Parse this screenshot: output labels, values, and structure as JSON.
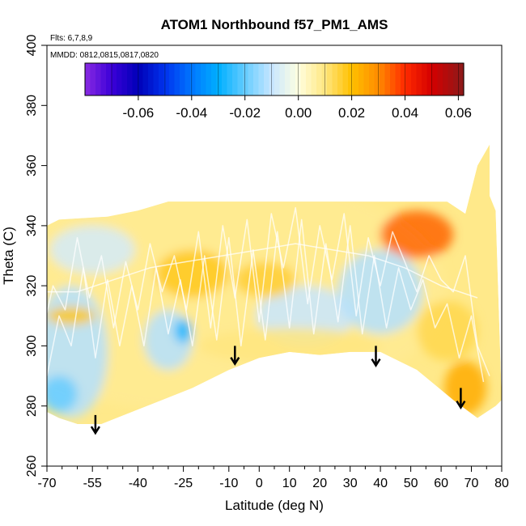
{
  "chart_data": {
    "type": "heatmap",
    "title": "ATOM1 Northbound f57_PM1_AMS",
    "annotations": {
      "flights": "Flts: 6,7,8,9",
      "dates": "MMDD: 0812,0815,0817,0820"
    },
    "xlabel": "Latitude (deg N)",
    "ylabel": "Theta (C)",
    "xlim": [
      -70,
      80
    ],
    "ylim": [
      260,
      400
    ],
    "x_ticks": [
      {
        "v": -70,
        "label": "-70"
      },
      {
        "v": -55,
        "label": "-55"
      },
      {
        "v": -40,
        "label": "-40"
      },
      {
        "v": -25,
        "label": "-25"
      },
      {
        "v": -10,
        "label": "-10"
      },
      {
        "v": 0,
        "label": "0"
      },
      {
        "v": 10,
        "label": "10"
      },
      {
        "v": 20,
        "label": "20"
      },
      {
        "v": 30,
        "label": "30"
      },
      {
        "v": 40,
        "label": "40"
      },
      {
        "v": 50,
        "label": "50"
      },
      {
        "v": 60,
        "label": "60"
      },
      {
        "v": 70,
        "label": "70"
      },
      {
        "v": 80,
        "label": "80"
      }
    ],
    "x_minor_ticks": [
      -65,
      -60,
      -50,
      -45,
      -35,
      -30,
      -20,
      -15,
      -5,
      5,
      15,
      25,
      35,
      45,
      55,
      65,
      75
    ],
    "y_ticks": [
      {
        "v": 260,
        "label": "260"
      },
      {
        "v": 280,
        "label": "280"
      },
      {
        "v": 300,
        "label": "300"
      },
      {
        "v": 320,
        "label": "320"
      },
      {
        "v": 340,
        "label": "340"
      },
      {
        "v": 360,
        "label": "360"
      },
      {
        "v": 380,
        "label": "380"
      },
      {
        "v": 400,
        "label": "400"
      }
    ],
    "colorbar": {
      "range": [
        -0.08,
        0.062
      ],
      "ticks": [
        {
          "v": -0.06,
          "label": "-0.06"
        },
        {
          "v": -0.04,
          "label": "-0.04"
        },
        {
          "v": -0.02,
          "label": "-0.02"
        },
        {
          "v": 0.0,
          "label": "0.00"
        },
        {
          "v": 0.02,
          "label": "0.02"
        },
        {
          "v": 0.04,
          "label": "0.04"
        },
        {
          "v": 0.06,
          "label": "0.06"
        }
      ],
      "stops": [
        {
          "v": -0.08,
          "color": "#8a2be2"
        },
        {
          "v": -0.07,
          "color": "#3b00d8"
        },
        {
          "v": -0.06,
          "color": "#0000b8"
        },
        {
          "v": -0.05,
          "color": "#0033ee"
        },
        {
          "v": -0.04,
          "color": "#0077ff"
        },
        {
          "v": -0.03,
          "color": "#00b0ff"
        },
        {
          "v": -0.02,
          "color": "#66ccff"
        },
        {
          "v": -0.01,
          "color": "#c8e6ff"
        },
        {
          "v": 0.0,
          "color": "#ffffe0"
        },
        {
          "v": 0.01,
          "color": "#ffe680"
        },
        {
          "v": 0.02,
          "color": "#ffc000"
        },
        {
          "v": 0.03,
          "color": "#ff8c00"
        },
        {
          "v": 0.04,
          "color": "#ff2a00"
        },
        {
          "v": 0.05,
          "color": "#d40000"
        },
        {
          "v": 0.062,
          "color": "#8b1a1a"
        }
      ]
    },
    "data_hull": {
      "top": [
        [
          -74,
          338
        ],
        [
          -66,
          342
        ],
        [
          -50,
          343
        ],
        [
          -40,
          345
        ],
        [
          -30,
          348
        ],
        [
          -10,
          348
        ],
        [
          10,
          348
        ],
        [
          30,
          348
        ],
        [
          50,
          348
        ],
        [
          62,
          348
        ],
        [
          68,
          344
        ],
        [
          72,
          360
        ],
        [
          76,
          367
        ],
        [
          76,
          350
        ],
        [
          78,
          345
        ]
      ],
      "bottom": [
        [
          80,
          282
        ],
        [
          78,
          280
        ],
        [
          72,
          276
        ],
        [
          64,
          282
        ],
        [
          52,
          292
        ],
        [
          40,
          298
        ],
        [
          30,
          298
        ],
        [
          20,
          297
        ],
        [
          10,
          298
        ],
        [
          0,
          296
        ],
        [
          -10,
          292
        ],
        [
          -22,
          286
        ],
        [
          -32,
          282
        ],
        [
          -42,
          278
        ],
        [
          -52,
          274
        ],
        [
          -60,
          274
        ],
        [
          -66,
          276
        ],
        [
          -70,
          278
        ],
        [
          -74,
          280
        ]
      ]
    },
    "regions": [
      {
        "name": "broad-background",
        "lat": -18,
        "theta": 318,
        "rlat": 80,
        "rtheta": 40,
        "value": 0.008
      },
      {
        "name": "southern-blue-band",
        "lat": -62,
        "theta": 298,
        "rlat": 12,
        "rtheta": 22,
        "value": -0.012
      },
      {
        "name": "southern-upper-blue",
        "lat": -55,
        "theta": 332,
        "rlat": 14,
        "rtheta": 8,
        "value": -0.008
      },
      {
        "name": "southern-low-blue",
        "lat": -66,
        "theta": 284,
        "rlat": 6,
        "rtheta": 6,
        "value": -0.02
      },
      {
        "name": "midsouth-blue",
        "lat": -30,
        "theta": 302,
        "rlat": 8,
        "rtheta": 10,
        "value": -0.012
      },
      {
        "name": "blue-spot-25s",
        "lat": -25,
        "theta": 305,
        "rlat": 3,
        "rtheta": 4,
        "value": -0.028
      },
      {
        "name": "tropical-orange",
        "lat": -22,
        "theta": 324,
        "rlat": 12,
        "rtheta": 8,
        "value": 0.018
      },
      {
        "name": "equatorial-blue",
        "lat": 15,
        "theta": 310,
        "rlat": 16,
        "rtheta": 10,
        "value": -0.01
      },
      {
        "name": "equatorial-orange",
        "lat": 2,
        "theta": 322,
        "rlat": 10,
        "rtheta": 6,
        "value": 0.016
      },
      {
        "name": "north-upper-red",
        "lat": 52,
        "theta": 337,
        "rlat": 12,
        "rtheta": 8,
        "value": 0.034
      },
      {
        "name": "north-blue",
        "lat": 40,
        "theta": 318,
        "rlat": 14,
        "rtheta": 14,
        "value": -0.012
      },
      {
        "name": "north-lower-orange",
        "lat": 68,
        "theta": 286,
        "rlat": 7,
        "rtheta": 9,
        "value": 0.024
      },
      {
        "name": "north-mid-orange",
        "lat": 62,
        "theta": 305,
        "rlat": 10,
        "rtheta": 10,
        "value": 0.014
      },
      {
        "name": "lower-yellow",
        "lat": 10,
        "theta": 300,
        "rlat": 30,
        "rtheta": 6,
        "value": 0.01
      },
      {
        "name": "southern-orange-strip",
        "lat": -62,
        "theta": 310,
        "rlat": 8,
        "rtheta": 3,
        "value": 0.018
      }
    ],
    "arrows": [
      {
        "lat": -54,
        "theta_start": 277,
        "theta_end": 271
      },
      {
        "lat": -8,
        "theta_start": 300,
        "theta_end": 294
      },
      {
        "lat": 38.5,
        "theta_start": 300,
        "theta_end": 293.5
      },
      {
        "lat": 66.5,
        "theta_start": 286,
        "theta_end": 279.5
      }
    ],
    "flight_tracks": [
      [
        [
          -72,
          302
        ],
        [
          -68,
          320
        ],
        [
          -64,
          312
        ],
        [
          -60,
          336
        ],
        [
          -56,
          316
        ],
        [
          -52,
          330
        ],
        [
          -48,
          306
        ],
        [
          -44,
          328
        ],
        [
          -40,
          312
        ],
        [
          -36,
          334
        ],
        [
          -32,
          318
        ],
        [
          -28,
          330
        ],
        [
          -24,
          312
        ],
        [
          -20,
          338
        ],
        [
          -16,
          306
        ],
        [
          -12,
          340
        ],
        [
          -8,
          316
        ],
        [
          -4,
          342
        ],
        [
          0,
          308
        ],
        [
          4,
          344
        ],
        [
          8,
          326
        ],
        [
          12,
          346
        ],
        [
          16,
          314
        ],
        [
          20,
          340
        ],
        [
          24,
          322
        ],
        [
          28,
          344
        ],
        [
          32,
          310
        ],
        [
          36,
          336
        ],
        [
          40,
          320
        ],
        [
          44,
          338
        ],
        [
          48,
          328
        ],
        [
          52,
          318
        ],
        [
          56,
          330
        ],
        [
          60,
          322
        ],
        [
          64,
          318
        ],
        [
          68,
          330
        ],
        [
          72,
          300
        ],
        [
          76,
          290
        ]
      ],
      [
        [
          -70,
          290
        ],
        [
          -66,
          310
        ],
        [
          -62,
          300
        ],
        [
          -58,
          326
        ],
        [
          -54,
          296
        ],
        [
          -50,
          322
        ],
        [
          -46,
          300
        ],
        [
          -42,
          320
        ],
        [
          -38,
          300
        ],
        [
          -34,
          326
        ],
        [
          -30,
          304
        ],
        [
          -26,
          322
        ],
        [
          -22,
          300
        ],
        [
          -18,
          330
        ],
        [
          -14,
          302
        ],
        [
          -10,
          336
        ],
        [
          -6,
          300
        ],
        [
          -2,
          332
        ],
        [
          2,
          302
        ],
        [
          6,
          338
        ],
        [
          10,
          306
        ],
        [
          14,
          342
        ],
        [
          18,
          304
        ],
        [
          22,
          334
        ],
        [
          26,
          308
        ],
        [
          30,
          340
        ],
        [
          34,
          304
        ],
        [
          38,
          330
        ],
        [
          42,
          306
        ],
        [
          46,
          326
        ],
        [
          50,
          312
        ],
        [
          54,
          322
        ],
        [
          58,
          306
        ],
        [
          62,
          314
        ],
        [
          66,
          296
        ],
        [
          70,
          310
        ],
        [
          74,
          288
        ]
      ],
      [
        [
          -72,
          318
        ],
        [
          -60,
          318
        ],
        [
          -48,
          322
        ],
        [
          -36,
          326
        ],
        [
          -24,
          328
        ],
        [
          -12,
          330
        ],
        [
          0,
          332
        ],
        [
          12,
          334
        ],
        [
          24,
          332
        ],
        [
          36,
          330
        ],
        [
          48,
          326
        ],
        [
          60,
          320
        ],
        [
          72,
          316
        ]
      ]
    ]
  }
}
